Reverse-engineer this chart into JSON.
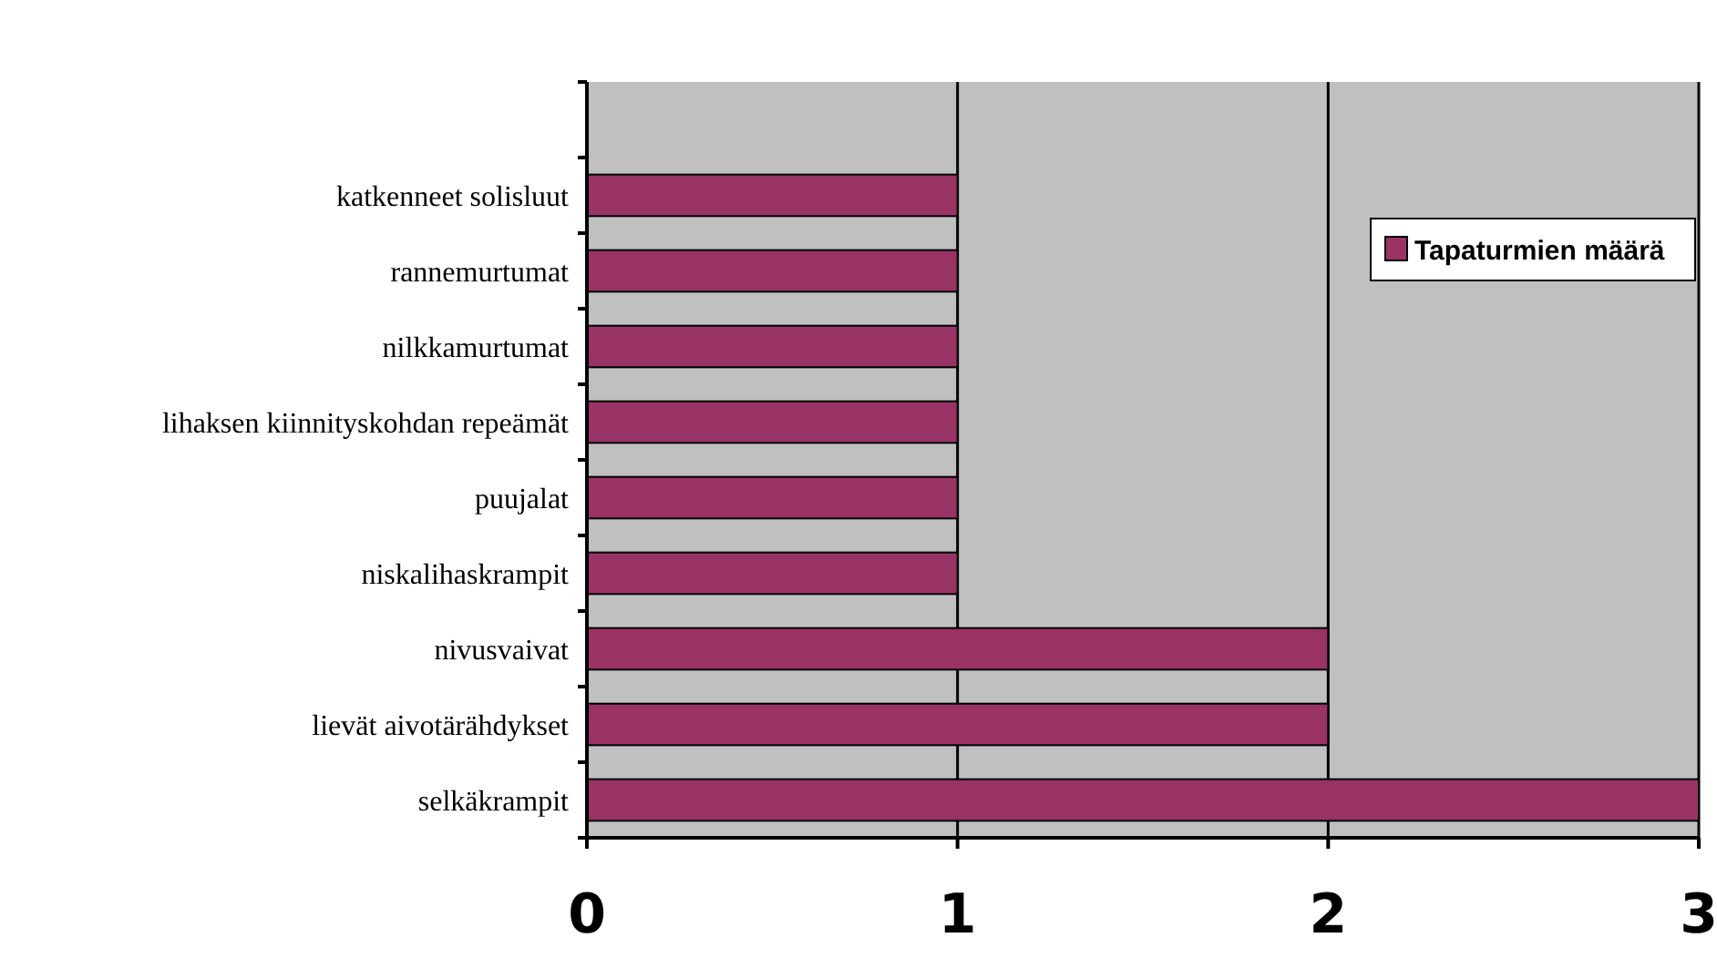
{
  "chart_data": {
    "type": "bar",
    "orientation": "horizontal",
    "categories": [
      null,
      "katkenneet solisluut",
      "rannemurtumat",
      "nilkkamurtumat",
      "lihaksen kiinnityskohdan repeämät",
      "puujalat",
      "niskalihaskrampit",
      "nivusvaivat",
      "lievät aivotärähdykset",
      "selkäkrampit"
    ],
    "series": [
      {
        "name": "Tapaturmien määrä",
        "color": "#993366",
        "values": [
          null,
          1,
          1,
          1,
          1,
          1,
          1,
          2,
          2,
          3
        ]
      }
    ],
    "xlim": [
      0,
      3
    ],
    "xticks": [
      0,
      1,
      2,
      3
    ],
    "grid": "x",
    "legend": "top right"
  }
}
